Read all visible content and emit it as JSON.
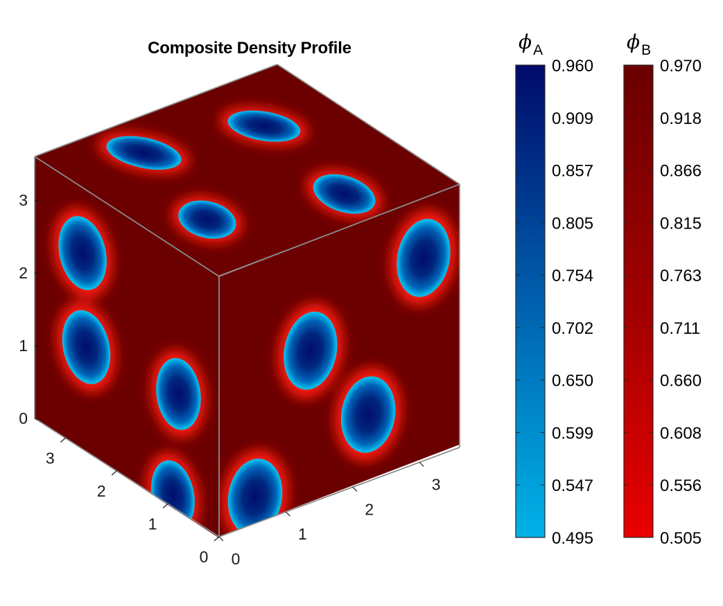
{
  "chart_data": {
    "type": "heatmap",
    "subtype": "3d-volume-slice-cube",
    "title": "Composite Density Profile",
    "axes": {
      "x": {
        "range": [
          0,
          3.6
        ],
        "ticks": [
          "0",
          "1",
          "2",
          "3"
        ]
      },
      "y": {
        "range": [
          0,
          3.6
        ],
        "ticks": [
          "0",
          "1",
          "2",
          "3"
        ]
      },
      "z": {
        "range": [
          0,
          3.6
        ],
        "ticks": [
          "0",
          "1",
          "2",
          "3"
        ]
      }
    },
    "grid": false,
    "colorbars": [
      {
        "name": "phi-a",
        "label_symbol": "ϕ",
        "label_subscript": "A",
        "colormap": {
          "low": "#00b2e8",
          "high": "#000a6a"
        },
        "range": [
          0.495,
          0.96
        ],
        "ticks": [
          "0.960",
          "0.909",
          "0.857",
          "0.805",
          "0.754",
          "0.702",
          "0.650",
          "0.599",
          "0.547",
          "0.495"
        ]
      },
      {
        "name": "phi-b",
        "label_symbol": "ϕ",
        "label_subscript": "B",
        "colormap": {
          "low": "#ea0000",
          "high": "#6a0000"
        },
        "range": [
          0.505,
          0.97
        ],
        "ticks": [
          "0.970",
          "0.918",
          "0.866",
          "0.815",
          "0.763",
          "0.711",
          "0.660",
          "0.608",
          "0.556",
          "0.505"
        ]
      }
    ],
    "domains": {
      "phase": "A",
      "top_face": [
        {
          "u": 0.2,
          "v": 0.7,
          "ru": 0.14,
          "rv": 0.09,
          "rot": -15
        },
        {
          "u": 0.68,
          "v": 0.8,
          "ru": 0.13,
          "rv": 0.09,
          "rot": 18
        },
        {
          "u": 0.3,
          "v": 0.28,
          "ru": 0.13,
          "rv": 0.09,
          "rot": -20
        },
        {
          "u": 0.82,
          "v": 0.34,
          "ru": 0.14,
          "rv": 0.09,
          "rot": 10
        }
      ],
      "left_face": [
        {
          "u": 0.26,
          "v": 0.25,
          "ru": 0.12,
          "rv": 0.15,
          "rot": 35
        },
        {
          "u": 0.28,
          "v": 0.6,
          "ru": 0.12,
          "rv": 0.15,
          "rot": 35
        },
        {
          "u": 0.78,
          "v": 0.55,
          "ru": 0.11,
          "rv": 0.15,
          "rot": 30
        },
        {
          "u": 0.75,
          "v": 0.95,
          "ru": 0.11,
          "rv": 0.14,
          "rot": 30
        }
      ],
      "right_face": [
        {
          "u": 0.38,
          "v": 0.42,
          "ru": 0.11,
          "rv": 0.15,
          "rot": -10
        },
        {
          "u": 0.85,
          "v": 0.23,
          "ru": 0.11,
          "rv": 0.15,
          "rot": -10
        },
        {
          "u": 0.15,
          "v": 0.9,
          "ru": 0.11,
          "rv": 0.15,
          "rot": -15
        },
        {
          "u": 0.62,
          "v": 0.75,
          "ru": 0.11,
          "rv": 0.15,
          "rot": -15
        }
      ]
    }
  }
}
